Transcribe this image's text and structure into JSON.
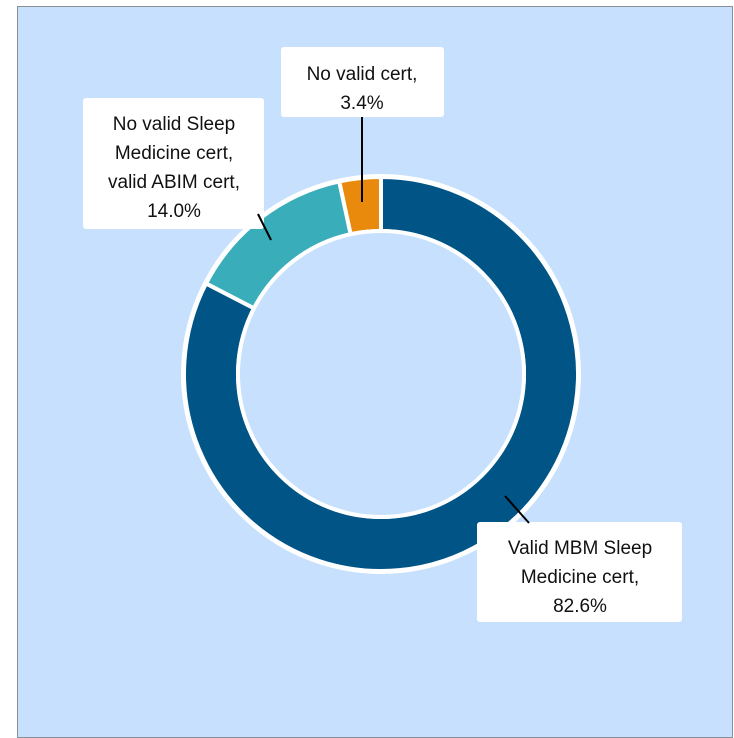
{
  "chart_data": {
    "type": "pie",
    "donut": true,
    "slices": [
      {
        "label_lines": [
          "Valid MBM Sleep",
          "Medicine cert,",
          "82.6%"
        ],
        "value": 82.6,
        "color": "#005486"
      },
      {
        "label_lines": [
          "No valid Sleep",
          "Medicine cert,",
          "valid ABIM cert,",
          "14.0%"
        ],
        "value": 14.0,
        "color": "#39adb9"
      },
      {
        "label_lines": [
          "No valid cert,",
          "3.4%"
        ],
        "value": 3.4,
        "color": "#e98a0d"
      }
    ],
    "start": "12 o'clock, clockwise",
    "legend": "none"
  },
  "colors": {
    "background": "#c6e0fd",
    "separator": "#ffffff"
  }
}
